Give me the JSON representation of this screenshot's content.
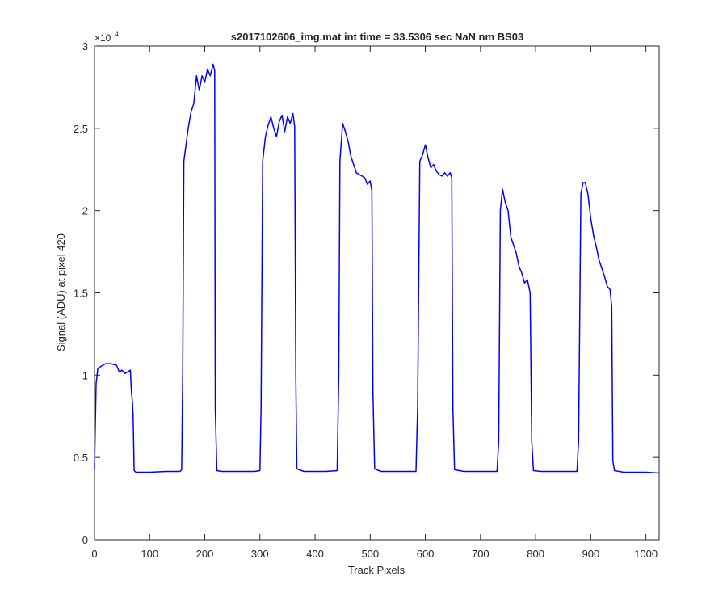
{
  "chart_data": {
    "type": "line",
    "title": "s2017102606_img.mat int time = 33.5306 sec  NaN nm BS03",
    "xlabel": "Track Pixels",
    "ylabel": "Signal (ADU) at pixel 420",
    "y_exponent_label": "×10",
    "y_exponent_power": "4",
    "xlim": [
      0,
      1024
    ],
    "ylim": [
      0,
      30000
    ],
    "x_ticks": [
      0,
      100,
      200,
      300,
      400,
      500,
      600,
      700,
      800,
      900,
      1000
    ],
    "x_tick_labels": [
      "0",
      "100",
      "200",
      "300",
      "400",
      "500",
      "600",
      "700",
      "800",
      "900",
      "1000"
    ],
    "y_ticks": [
      0,
      5000,
      10000,
      15000,
      20000,
      25000,
      30000
    ],
    "y_tick_labels": [
      "0",
      "0.5",
      "1",
      "1.5",
      "2",
      "2.5",
      "3"
    ],
    "grid": false,
    "series": [
      {
        "color": "#0000ff",
        "points": [
          [
            0,
            4300
          ],
          [
            3,
            9500
          ],
          [
            6,
            10400
          ],
          [
            10,
            10500
          ],
          [
            20,
            10700
          ],
          [
            30,
            10700
          ],
          [
            40,
            10600
          ],
          [
            45,
            10200
          ],
          [
            50,
            10300
          ],
          [
            55,
            10100
          ],
          [
            60,
            10200
          ],
          [
            65,
            10300
          ],
          [
            67,
            9000
          ],
          [
            69,
            8300
          ],
          [
            70,
            7500
          ],
          [
            72,
            4200
          ],
          [
            75,
            4100
          ],
          [
            100,
            4100
          ],
          [
            130,
            4150
          ],
          [
            155,
            4150
          ],
          [
            158,
            4250
          ],
          [
            160,
            10000
          ],
          [
            162,
            23000
          ],
          [
            166,
            24000
          ],
          [
            170,
            25000
          ],
          [
            175,
            26000
          ],
          [
            180,
            26500
          ],
          [
            185,
            28200
          ],
          [
            190,
            27300
          ],
          [
            195,
            28200
          ],
          [
            200,
            27800
          ],
          [
            205,
            28600
          ],
          [
            210,
            28200
          ],
          [
            215,
            28900
          ],
          [
            218,
            28500
          ],
          [
            219,
            8000
          ],
          [
            222,
            4200
          ],
          [
            230,
            4150
          ],
          [
            260,
            4150
          ],
          [
            290,
            4150
          ],
          [
            300,
            4200
          ],
          [
            302,
            8000
          ],
          [
            305,
            23000
          ],
          [
            310,
            24500
          ],
          [
            315,
            25200
          ],
          [
            320,
            25700
          ],
          [
            325,
            25000
          ],
          [
            330,
            24500
          ],
          [
            335,
            25400
          ],
          [
            340,
            25800
          ],
          [
            345,
            24800
          ],
          [
            350,
            25700
          ],
          [
            355,
            25300
          ],
          [
            360,
            25900
          ],
          [
            363,
            25100
          ],
          [
            365,
            10000
          ],
          [
            367,
            4300
          ],
          [
            380,
            4150
          ],
          [
            420,
            4150
          ],
          [
            440,
            4200
          ],
          [
            443,
            10000
          ],
          [
            445,
            23000
          ],
          [
            450,
            25300
          ],
          [
            455,
            24800
          ],
          [
            460,
            24200
          ],
          [
            465,
            23300
          ],
          [
            470,
            22800
          ],
          [
            475,
            22300
          ],
          [
            480,
            22200
          ],
          [
            485,
            22100
          ],
          [
            490,
            22000
          ],
          [
            495,
            21600
          ],
          [
            500,
            21800
          ],
          [
            503,
            21200
          ],
          [
            505,
            9000
          ],
          [
            508,
            4300
          ],
          [
            520,
            4150
          ],
          [
            560,
            4150
          ],
          [
            583,
            4150
          ],
          [
            586,
            8000
          ],
          [
            590,
            23000
          ],
          [
            595,
            23400
          ],
          [
            600,
            24000
          ],
          [
            605,
            23200
          ],
          [
            610,
            22600
          ],
          [
            615,
            22800
          ],
          [
            620,
            22400
          ],
          [
            625,
            22200
          ],
          [
            630,
            22100
          ],
          [
            635,
            22300
          ],
          [
            640,
            22100
          ],
          [
            645,
            22300
          ],
          [
            648,
            22000
          ],
          [
            650,
            8000
          ],
          [
            653,
            4250
          ],
          [
            670,
            4150
          ],
          [
            700,
            4150
          ],
          [
            730,
            4150
          ],
          [
            733,
            6000
          ],
          [
            736,
            20000
          ],
          [
            740,
            21300
          ],
          [
            745,
            20500
          ],
          [
            750,
            20000
          ],
          [
            755,
            18400
          ],
          [
            760,
            17900
          ],
          [
            765,
            17400
          ],
          [
            770,
            16600
          ],
          [
            775,
            16200
          ],
          [
            780,
            15600
          ],
          [
            785,
            15800
          ],
          [
            790,
            15000
          ],
          [
            793,
            6000
          ],
          [
            796,
            4200
          ],
          [
            810,
            4150
          ],
          [
            850,
            4150
          ],
          [
            875,
            4150
          ],
          [
            878,
            6000
          ],
          [
            882,
            21000
          ],
          [
            886,
            21700
          ],
          [
            890,
            21700
          ],
          [
            895,
            21000
          ],
          [
            900,
            19500
          ],
          [
            905,
            18500
          ],
          [
            910,
            17800
          ],
          [
            915,
            17000
          ],
          [
            920,
            16500
          ],
          [
            925,
            16000
          ],
          [
            930,
            15400
          ],
          [
            935,
            15200
          ],
          [
            938,
            14200
          ],
          [
            940,
            4800
          ],
          [
            943,
            4200
          ],
          [
            960,
            4100
          ],
          [
            1000,
            4100
          ],
          [
            1024,
            4050
          ]
        ]
      }
    ]
  }
}
